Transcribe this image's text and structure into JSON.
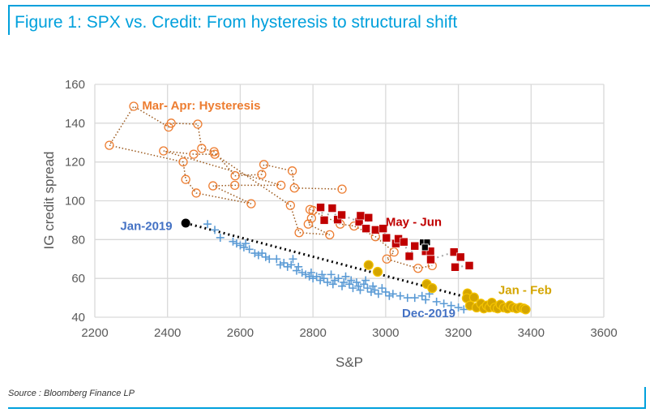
{
  "title": "Figure 1: SPX vs. Credit: From hysteresis to structural shift",
  "source": "Source : Bloomberg Finance LP",
  "colors": {
    "frame": "#00a0dc",
    "hysteresis": "#ed7d31",
    "may_jun": "#c00000",
    "y2019": "#5b9bd5",
    "jan_feb": "#d4a500",
    "grid": "#d9d9d9"
  },
  "chart_data": {
    "type": "scatter",
    "xlabel": "S&P",
    "ylabel": "IG credit spread",
    "xlim": [
      2200,
      3600
    ],
    "ylim": [
      40,
      160
    ],
    "xticks": [
      2200,
      2400,
      2600,
      2800,
      3000,
      3200,
      3400,
      3600
    ],
    "yticks": [
      40,
      60,
      80,
      100,
      120,
      140,
      160
    ],
    "grid": true,
    "annotations": [
      {
        "text": "Mar- Apr: Hysteresis",
        "x": 2330,
        "y": 147,
        "color": "#ed7d31"
      },
      {
        "text": "May - Jun",
        "x": 3000,
        "y": 87,
        "color": "#c00000"
      },
      {
        "text": "Jan-2019",
        "x": 2270,
        "y": 85,
        "color": "#4472c4"
      },
      {
        "text": "Dec-2019",
        "x": 3045,
        "y": 40,
        "color": "#4472c4"
      },
      {
        "text": "Jan - Feb",
        "x": 3310,
        "y": 52,
        "color": "#d4a500"
      }
    ],
    "trend_arrow": {
      "from": [
        2450,
        88.5
      ],
      "to": [
        3330,
        45
      ]
    },
    "series": [
      {
        "key": "y2019",
        "marker": "cross",
        "points": [
          [
            2510,
            88
          ],
          [
            2530,
            85
          ],
          [
            2545,
            81
          ],
          [
            2580,
            79
          ],
          [
            2590,
            78
          ],
          [
            2600,
            77
          ],
          [
            2610,
            76
          ],
          [
            2615,
            78
          ],
          [
            2625,
            75
          ],
          [
            2640,
            73
          ],
          [
            2650,
            72
          ],
          [
            2660,
            73
          ],
          [
            2670,
            71
          ],
          [
            2680,
            70
          ],
          [
            2700,
            70
          ],
          [
            2710,
            67
          ],
          [
            2720,
            68
          ],
          [
            2730,
            66
          ],
          [
            2740,
            67
          ],
          [
            2745,
            70
          ],
          [
            2755,
            64
          ],
          [
            2760,
            66
          ],
          [
            2770,
            63
          ],
          [
            2780,
            62
          ],
          [
            2790,
            61
          ],
          [
            2795,
            63
          ],
          [
            2800,
            60
          ],
          [
            2810,
            61
          ],
          [
            2820,
            59
          ],
          [
            2825,
            62
          ],
          [
            2830,
            60
          ],
          [
            2840,
            58
          ],
          [
            2850,
            62
          ],
          [
            2855,
            57
          ],
          [
            2860,
            59
          ],
          [
            2870,
            60
          ],
          [
            2880,
            56
          ],
          [
            2885,
            58
          ],
          [
            2890,
            61
          ],
          [
            2900,
            57
          ],
          [
            2905,
            59
          ],
          [
            2910,
            55
          ],
          [
            2920,
            58
          ],
          [
            2925,
            56
          ],
          [
            2930,
            54
          ],
          [
            2940,
            57
          ],
          [
            2945,
            59
          ],
          [
            2950,
            55
          ],
          [
            2960,
            53
          ],
          [
            2965,
            56
          ],
          [
            2970,
            54
          ],
          [
            2980,
            52
          ],
          [
            2990,
            55
          ],
          [
            3000,
            53
          ],
          [
            3010,
            51
          ],
          [
            3020,
            52
          ],
          [
            3040,
            51
          ],
          [
            3060,
            50
          ],
          [
            3080,
            50
          ],
          [
            3100,
            51
          ],
          [
            3110,
            49
          ],
          [
            3120,
            52
          ],
          [
            3140,
            48
          ],
          [
            3160,
            47
          ],
          [
            3180,
            46
          ],
          [
            3200,
            45
          ],
          [
            3215,
            44
          ]
        ]
      },
      {
        "key": "hysteresis",
        "marker": "open-circle",
        "points": [
          [
            2880,
            106
          ],
          [
            2749,
            106.6
          ],
          [
            2743,
            115.4
          ],
          [
            2665,
            118.7
          ],
          [
            2659,
            113.6
          ],
          [
            2586,
            112.9
          ],
          [
            2528,
            125.3
          ],
          [
            2494,
            127
          ],
          [
            2483,
            139.5
          ],
          [
            2410,
            140
          ],
          [
            2403,
            138
          ],
          [
            2307,
            148.7
          ],
          [
            2240,
            128.6
          ],
          [
            2443,
            120
          ],
          [
            2450,
            111
          ],
          [
            2479,
            104
          ],
          [
            2630,
            98.5
          ],
          [
            2525,
            107.7
          ],
          [
            2585,
            108
          ],
          [
            2712,
            108
          ],
          [
            2389,
            125.7
          ],
          [
            2472,
            124
          ],
          [
            2530,
            124
          ],
          [
            2738,
            97.6
          ],
          [
            2762,
            83.6
          ],
          [
            2846,
            82.5
          ],
          [
            2787,
            88
          ],
          [
            2796,
            91
          ],
          [
            2800,
            95
          ],
          [
            2792,
            95.5
          ],
          [
            2875,
            88
          ],
          [
            2913,
            87
          ],
          [
            2972,
            81.5
          ],
          [
            3023,
            73.6
          ],
          [
            3003,
            70
          ],
          [
            3089,
            65.2
          ],
          [
            3128,
            66.6
          ]
        ]
      },
      {
        "key": "may_jun",
        "marker": "square",
        "points": [
          [
            2821,
            96.6
          ],
          [
            2831,
            90
          ],
          [
            2853,
            96.2
          ],
          [
            2868,
            90.3
          ],
          [
            2879,
            92.7
          ],
          [
            2927,
            89.2
          ],
          [
            2931,
            92.3
          ],
          [
            2953,
            91.3
          ],
          [
            2946,
            85.7
          ],
          [
            2972,
            85
          ],
          [
            2993,
            85.7
          ],
          [
            3002,
            80.9
          ],
          [
            3028,
            78
          ],
          [
            3035,
            80.4
          ],
          [
            3050,
            78.8
          ],
          [
            3065,
            71.4
          ],
          [
            3080,
            76.7
          ],
          [
            3110,
            74
          ],
          [
            3123,
            74
          ],
          [
            3124,
            69.7
          ],
          [
            3188,
            73.6
          ],
          [
            3206,
            71
          ],
          [
            3191,
            65.8
          ],
          [
            3230,
            66.6
          ]
        ]
      },
      {
        "key": "latest",
        "marker": "black-square",
        "points": [
          [
            3102,
            78.6
          ],
          [
            3114,
            78.6
          ],
          [
            3108,
            76
          ]
        ]
      },
      {
        "key": "jan_feb",
        "marker": "filled-circle",
        "points": [
          [
            2953,
            66.9
          ],
          [
            2978,
            63.4
          ],
          [
            3113,
            57.1
          ],
          [
            3128,
            55
          ],
          [
            3225,
            52.3
          ],
          [
            3223,
            49.8
          ],
          [
            3243,
            50.2
          ],
          [
            3232,
            46
          ],
          [
            3250,
            45
          ],
          [
            3262,
            47
          ],
          [
            3270,
            44.5
          ],
          [
            3278,
            46
          ],
          [
            3285,
            45
          ],
          [
            3292,
            47.5
          ],
          [
            3300,
            45
          ],
          [
            3308,
            44.5
          ],
          [
            3316,
            46.5
          ],
          [
            3325,
            45
          ],
          [
            3335,
            44.5
          ],
          [
            3342,
            46
          ],
          [
            3350,
            45
          ],
          [
            3360,
            44.5
          ],
          [
            3370,
            45
          ],
          [
            3380,
            44.5
          ],
          [
            3385,
            44
          ]
        ]
      }
    ]
  }
}
